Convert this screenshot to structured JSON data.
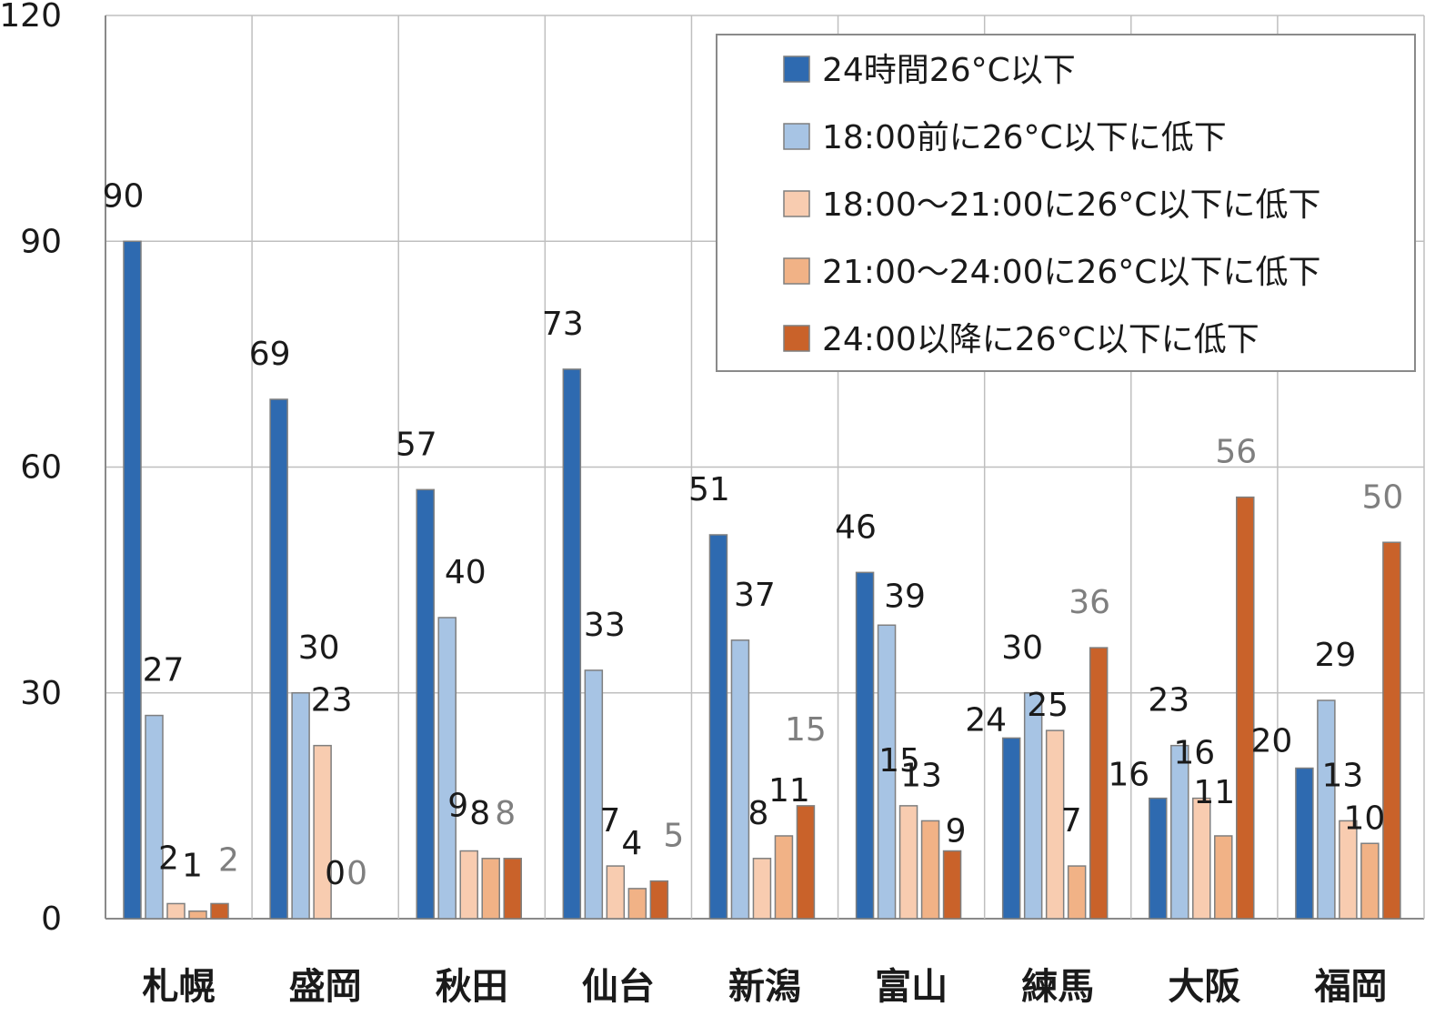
{
  "chart_data": {
    "type": "bar",
    "categories": [
      "札幌",
      "盛岡",
      "秋田",
      "仙台",
      "新潟",
      "富山",
      "練馬",
      "大阪",
      "福岡"
    ],
    "ylim": [
      0,
      120
    ],
    "yticks": [
      0,
      30,
      60,
      90,
      120
    ],
    "ytick_labels": [
      "0",
      "30",
      "60",
      "90",
      "120"
    ],
    "grid": true,
    "legend_position": "top-right",
    "series": [
      {
        "name": "24時間26°C以下",
        "color": "#2e6ab0",
        "values": [
          90,
          69,
          57,
          73,
          51,
          46,
          24,
          16,
          20
        ]
      },
      {
        "name": "18:00前に26°C以下に低下",
        "color": "#a7c4e4",
        "values": [
          27,
          30,
          40,
          33,
          37,
          39,
          30,
          23,
          29
        ]
      },
      {
        "name": "18:00～21:00に26°C以下に低下",
        "color": "#f8ccb0",
        "values": [
          2,
          23,
          9,
          7,
          8,
          15,
          25,
          16,
          13
        ]
      },
      {
        "name": "21:00～24:00に26°C以下に低下",
        "color": "#f1b286",
        "values": [
          1,
          0,
          8,
          4,
          11,
          13,
          7,
          11,
          10
        ]
      },
      {
        "name": "24:00以降に26°C以下に低下",
        "color": "#c9622a",
        "values": [
          2,
          0,
          8,
          5,
          15,
          9,
          36,
          56,
          50
        ]
      }
    ],
    "data_labels": [
      [
        "90",
        "27",
        "2",
        "1",
        "2"
      ],
      [
        "69",
        "30",
        "23",
        "0",
        "0"
      ],
      [
        "57",
        "40",
        "9",
        "8",
        "8"
      ],
      [
        "73",
        "33",
        "7",
        "4",
        "5"
      ],
      [
        "51",
        "37",
        "8",
        "11",
        "15"
      ],
      [
        "46",
        "39",
        "15",
        "13",
        "9"
      ],
      [
        "24",
        "30",
        "25",
        "7",
        "36"
      ],
      [
        "16",
        "23",
        "16",
        "11",
        "56"
      ],
      [
        "20",
        "29",
        "13",
        "10",
        "50"
      ]
    ]
  }
}
